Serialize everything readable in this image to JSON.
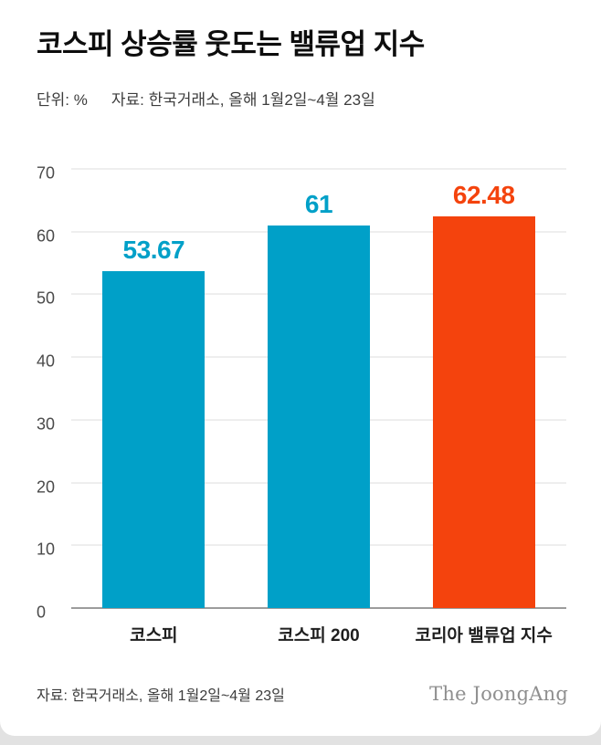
{
  "header": {
    "title": "코스피 상승률 웃도는 밸류업 지수",
    "unit_label": "단위: %",
    "source_label": "자료: 한국거래소, 올해 1월2일~4월 23일"
  },
  "chart_data": {
    "type": "bar",
    "title": "코스피 상승률 웃도는 밸류업 지수",
    "categories": [
      "코스피",
      "코스피 200",
      "코리아 밸류업 지수"
    ],
    "values": [
      53.67,
      61,
      62.48
    ],
    "value_labels": [
      "53.67",
      "61",
      "62.48"
    ],
    "bar_colors": [
      "#00a0c8",
      "#00a0c8",
      "#f4430d"
    ],
    "unit": "%",
    "xlabel": "",
    "ylabel": "단위: %",
    "ylim": [
      0,
      70
    ],
    "yticks": [
      0,
      10,
      20,
      30,
      40,
      50,
      60,
      70
    ],
    "grid": true,
    "legend": "none"
  },
  "footer": {
    "source": "자료: 한국거래소, 올해 1월2일~4월 23일",
    "brand": "The JoongAng"
  }
}
